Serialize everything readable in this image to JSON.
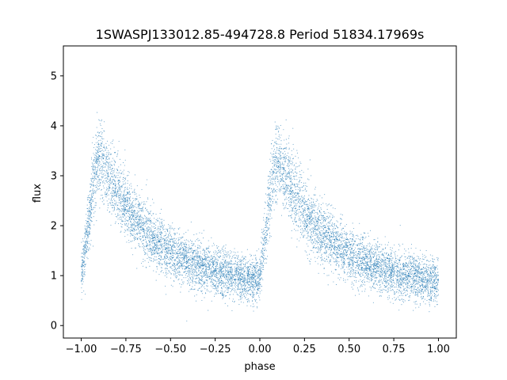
{
  "chart_data": {
    "type": "scatter",
    "title": "1SWASPJ133012.85-494728.8 Period 51834.17969s",
    "xlabel": "phase",
    "ylabel": "flux",
    "xlim": [
      -1.1,
      1.1
    ],
    "ylim": [
      -0.25,
      5.6
    ],
    "xticks": [
      -1.0,
      -0.75,
      -0.5,
      -0.25,
      0.0,
      0.25,
      0.5,
      0.75,
      1.0
    ],
    "xtick_labels": [
      "−1.00",
      "−0.75",
      "−0.50",
      "−0.25",
      "0.00",
      "0.25",
      "0.50",
      "0.75",
      "1.00"
    ],
    "yticks": [
      0,
      1,
      2,
      3,
      4,
      5
    ],
    "ytick_labels": [
      "0",
      "1",
      "2",
      "3",
      "4",
      "5"
    ],
    "grid": false,
    "legend": "none",
    "marker_color": "#1f77b4",
    "series": [
      {
        "x": [
          -1.0,
          -0.98,
          -0.96,
          -0.94,
          -0.92,
          -0.9,
          -0.88,
          -0.85,
          -0.8,
          -0.75,
          -0.7,
          -0.65,
          -0.6,
          -0.55,
          -0.5,
          -0.45,
          -0.4,
          -0.35,
          -0.3,
          -0.25,
          -0.2,
          -0.15,
          -0.1,
          -0.05,
          -0.02,
          0.0,
          0.02,
          0.04,
          0.06,
          0.08,
          0.1,
          0.12,
          0.15,
          0.2,
          0.25,
          0.3,
          0.35,
          0.4,
          0.45,
          0.5,
          0.55,
          0.6,
          0.65,
          0.7,
          0.75,
          0.8,
          0.85,
          0.9,
          0.95,
          1.0
        ],
        "y": [
          1.0,
          1.5,
          2.0,
          2.6,
          3.1,
          3.4,
          3.2,
          3.0,
          2.7,
          2.4,
          2.15,
          1.95,
          1.75,
          1.6,
          1.45,
          1.35,
          1.28,
          1.2,
          1.12,
          1.08,
          1.02,
          0.98,
          0.95,
          0.92,
          0.9,
          1.0,
          1.5,
          2.1,
          2.7,
          3.1,
          3.3,
          3.1,
          2.95,
          2.6,
          2.3,
          2.05,
          1.85,
          1.7,
          1.55,
          1.42,
          1.32,
          1.25,
          1.18,
          1.12,
          1.06,
          1.0,
          0.97,
          0.94,
          0.9,
          0.88
        ]
      }
    ]
  }
}
